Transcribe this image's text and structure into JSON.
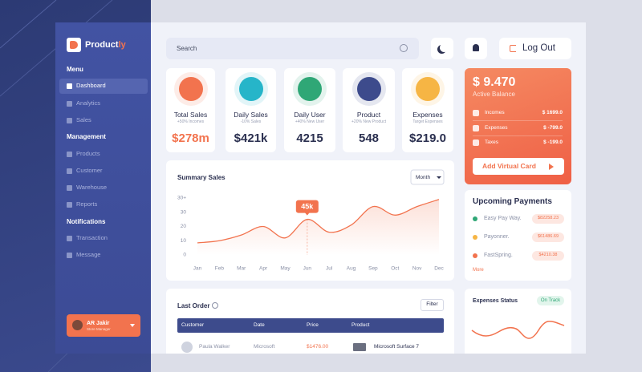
{
  "sidebar": {
    "brand": "Product",
    "brand_accent": "ly",
    "sections": [
      {
        "title": "Menu",
        "items": [
          "Dashboard",
          "Analytics",
          "Sales"
        ]
      },
      {
        "title": "Management",
        "items": [
          "Products",
          "Customer",
          "Warehouse",
          "Reports"
        ]
      },
      {
        "title": "Notifications",
        "items": [
          "Transaction",
          "Message"
        ]
      }
    ],
    "user": {
      "name": "AR Jakir",
      "role": "Store Manager"
    }
  },
  "header": {
    "search_placeholder": "Search",
    "logout": "Log Out"
  },
  "stats": [
    {
      "title": "Total Sales",
      "subtitle": "+50% Incomes",
      "value": "$278m"
    },
    {
      "title": "Daily Sales",
      "subtitle": "-10% Sales",
      "value": "$421k"
    },
    {
      "title": "Daily User",
      "subtitle": "+40% New User",
      "value": "4215"
    },
    {
      "title": "Product",
      "subtitle": "+20% New Product",
      "value": "548"
    },
    {
      "title": "Expenses",
      "subtitle": "Target Expenses",
      "value": "$219.0"
    }
  ],
  "balance": {
    "amount": "$ 9.470",
    "label": "Active Balance",
    "items": [
      {
        "label": "Incomes",
        "value": "$ 1699.0"
      },
      {
        "label": "Expenses",
        "value": "$ -799.0"
      },
      {
        "label": "Taxes",
        "value": "$ -199.0"
      }
    ],
    "button": "Add Virtual Card"
  },
  "chart_data": {
    "type": "line",
    "title": "Summary Sales",
    "filter": "Month",
    "categories": [
      "Jan",
      "Feb",
      "Mar",
      "Apr",
      "May",
      "Jun",
      "Jul",
      "Aug",
      "Sep",
      "Oct",
      "Nov",
      "Dec"
    ],
    "series": [
      {
        "name": "Sales",
        "color": "#f2734e",
        "values": [
          8.5,
          10,
          14,
          20,
          12,
          25,
          16,
          21,
          34,
          28,
          34,
          39
        ]
      }
    ],
    "annotation": "45k",
    "ylim": [
      0,
      40
    ],
    "yticks": [
      0,
      10,
      20,
      30,
      {
        "value": 40,
        "label": "30+"
      }
    ],
    "grid": false
  },
  "payments": {
    "title": "Upcoming Payments",
    "items": [
      {
        "name": "Easy Pay Way.",
        "amount": "$82258.23"
      },
      {
        "name": "Payonner.",
        "amount": "$61486.69"
      },
      {
        "name": "FastSpring.",
        "amount": "$4210.38"
      }
    ],
    "more": "More"
  },
  "orders": {
    "title": "Last Order",
    "filter": "Filter",
    "columns": [
      "Customer",
      "Date",
      "Price",
      "Product"
    ],
    "rows": [
      [
        "Paula Walker",
        "Microsoft",
        "$1476.00",
        "Microsoft Surface 7"
      ]
    ]
  },
  "expenses_status": {
    "title": "Expenses Status",
    "badge": "On Track"
  }
}
